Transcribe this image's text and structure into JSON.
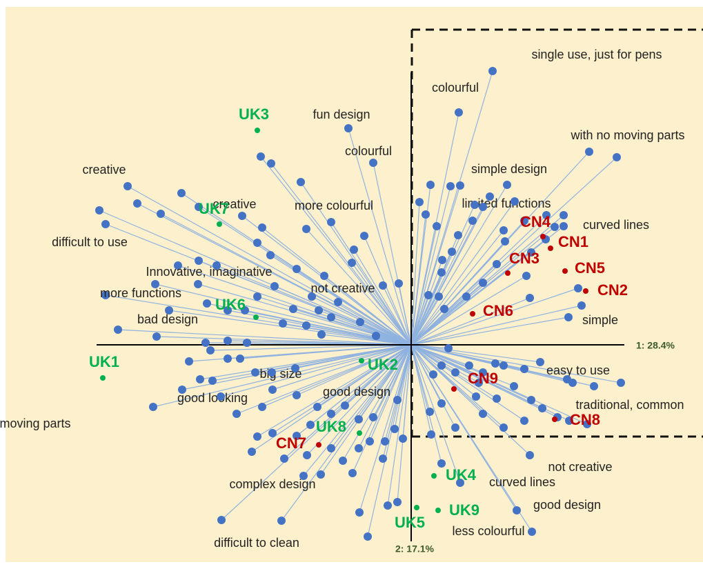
{
  "chart_data": {
    "type": "scatter",
    "x_label": "1: 28.4%",
    "y_label": "2: 17.1%",
    "xlim": [
      -588,
      423
    ],
    "ylim": [
      -315,
      490
    ],
    "series": [
      {
        "color": "#4472c4",
        "x": [
          118,
          69,
          258,
          139,
          114,
          221,
          228,
          234,
          255,
          172,
          71,
          153,
          175,
          -275,
          -188,
          -374,
          -332,
          -248,
          -20,
          -18,
          -425,
          -443,
          -338,
          -443,
          -411,
          -245,
          -116,
          -55,
          -91
        ],
        "y": [
          397,
          337,
          280,
          232,
          215,
          172,
          40,
          -55,
          -115,
          -160,
          -200,
          -240,
          -271,
          -254,
          -255,
          -90,
          -65,
          -20,
          -80,
          89,
          22,
          72,
          115,
          175,
          230,
          187,
          178,
          264,
          314
        ],
        "labels": [
          "single use, just for pens",
          "colourful",
          "with no moving parts",
          "simple design",
          "limited functions",
          "curved lines",
          "simple",
          "easy to use",
          "traditional, common",
          "not creative",
          "curved lines",
          "good design",
          "less colourful",
          "difficult to clean",
          "complex design",
          "with no moving parts",
          "good looking",
          "big size",
          "good design",
          "not creative",
          "bad design",
          "more functions",
          "Innovative, imaginative",
          "difficult to use",
          "creative",
          "creative",
          "more colourful",
          "colourful",
          "fun design"
        ]
      },
      {
        "color": "#4472c4",
        "x": [
          298,
          208,
          221,
          195,
          247,
          242,
          172,
          167,
          174,
          136,
          104,
          89,
          68,
          45,
          44,
          59,
          37,
          21,
          12,
          28,
          57,
          92,
          150,
          196,
          164,
          124,
          104,
          80,
          48,
          40,
          25,
          71,
          134,
          304,
          265,
          226,
          212,
          190,
          174,
          149,
          124,
          94,
          84,
          104,
          122,
          134,
          164,
          187,
          54,
          44,
          64,
          32,
          44,
          64,
          104,
          134,
          164,
          229,
          98,
          27,
          29,
          44,
          -41,
          -34,
          -75,
          -63,
          -20,
          -12,
          -24,
          -38,
          -55,
          -76,
          -96,
          -116,
          -146,
          -166,
          -201,
          -223,
          -231,
          -184,
          -151,
          -116,
          -99,
          -85,
          -131,
          -156,
          -76,
          -60,
          -253,
          -276,
          -306,
          -288,
          -322,
          -291,
          -266,
          -238,
          -298,
          -266,
          -226,
          -202,
          -168,
          -201,
          -166,
          -136,
          -216,
          -452,
          -397,
          -333,
          -363,
          -308,
          -282,
          -308,
          -371,
          -309,
          -351,
          -369,
          -296,
          -266,
          -241,
          -223,
          -223,
          -204,
          -216,
          -166,
          -198,
          -171,
          -144,
          -134,
          -130,
          -152,
          -116,
          -106,
          -152,
          -218,
          -203,
          -160,
          -86,
          -68,
          -41,
          -83,
          -126,
          -186,
          -74,
          -51
        ],
        "y": [
          272,
          171,
          188,
          153,
          57,
          82,
          68,
          100,
          134,
          150,
          200,
          180,
          159,
          123,
          105,
          135,
          172,
          189,
          207,
          232,
          230,
          203,
          208,
          188,
          180,
          117,
          90,
          70,
          52,
          70,
          72,
          231,
          166,
          -55,
          -60,
          -50,
          -105,
          -92,
          -80,
          -60,
          -78,
          -75,
          -30,
          -40,
          -27,
          -30,
          -35,
          -25,
          -5,
          -30,
          -40,
          -43,
          -85,
          -120,
          -100,
          -120,
          -110,
          -110,
          -55,
          -97,
          -130,
          -172,
          -165,
          -233,
          -243,
          -278,
          -228,
          -136,
          -122,
          -140,
          -105,
          -108,
          -88,
          -100,
          -116,
          -132,
          -128,
          -133,
          -155,
          -165,
          -160,
          -150,
          -168,
          -186,
          -188,
          -190,
          -150,
          -140,
          -100,
          -75,
          -50,
          -52,
          -24,
          -8,
          6,
          3,
          3,
          -20,
          -40,
          -40,
          -34,
          -65,
          -73,
          -90,
          -90,
          195,
          205,
          220,
          190,
          200,
          115,
          122,
          88,
          88,
          50,
          12,
          60,
          50,
          50,
          70,
          148,
          130,
          170,
          110,
          85,
          52,
          70,
          50,
          15,
          28,
          40,
          62,
          168,
          273,
          263,
          236,
          119,
          158,
          86,
          138,
          100,
          31,
          33,
          13
        ]
      },
      {
        "color": "#00b050",
        "x": [
          -447,
          -72,
          -223,
          33,
          8,
          -225,
          -278,
          -75,
          39
        ],
        "y": [
          -48,
          -23,
          311,
          -190,
          -236,
          40,
          175,
          -128,
          -240
        ],
        "labels": [
          "UK1",
          "UK2",
          "UK3",
          "UK4",
          "UK5",
          "UK6",
          "UK7",
          "UK8",
          "UK9"
        ]
      },
      {
        "color": "#c00000",
        "x": [
          202,
          253,
          140,
          191,
          223,
          89,
          -134,
          208,
          62
        ],
        "y": [
          140,
          78,
          104,
          157,
          107,
          45,
          -145,
          -108,
          -64
        ],
        "labels": [
          "CN1",
          "CN2",
          "CN3",
          "CN4",
          "CN5",
          "CN6",
          "CN7",
          "CN8",
          "CN9"
        ]
      }
    ]
  }
}
